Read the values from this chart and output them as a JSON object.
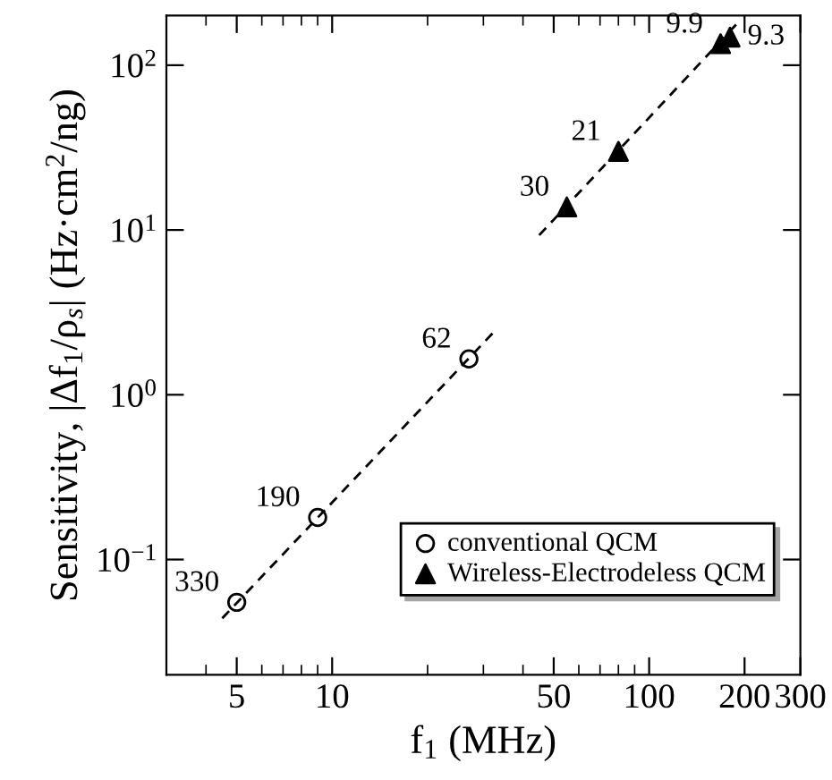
{
  "chart_data": {
    "type": "scatter",
    "xlabel": "f$_{1}$ (MHz)",
    "ylabel": "Sensitivity, |Δf$_{1}$/ρ$_{s}$| (Hz·cm$^{2}$/ng)",
    "log": "xy",
    "xlim": [
      3,
      300
    ],
    "ylim": [
      0.02,
      200
    ],
    "xticks": [
      5,
      10,
      50,
      100,
      200,
      300
    ],
    "yticks": [
      {
        "value": 0.1,
        "label": "10$^{−1}$"
      },
      {
        "value": 1,
        "label": "10$^{0}$"
      },
      {
        "value": 10,
        "label": "10$^{1}$"
      },
      {
        "value": 100,
        "label": "10$^{2}$"
      }
    ],
    "grid": false,
    "legend": "bottom right",
    "series": [
      {
        "name": "conventional QCM",
        "color": "#000000",
        "marker": "circle",
        "x": [
          5,
          9,
          27
        ],
        "values": [
          0.055,
          0.18,
          1.65
        ]
      },
      {
        "name": "Wireless-Electrodeless QCM",
        "color": "#000000",
        "marker": "triangle",
        "x": [
          55,
          80,
          168,
          180
        ],
        "values": [
          13.8,
          30,
          135,
          148
        ]
      },
      {
        "type": "line",
        "color": "#000000",
        "line_style": "dashed",
        "marker": "none",
        "x": [
          4.5,
          33
        ],
        "values": [
          0.044,
          2.5
        ]
      },
      {
        "type": "line",
        "color": "#000000",
        "line_style": "dashed",
        "marker": "none",
        "x": [
          45,
          190
        ],
        "values": [
          9.3,
          180
        ]
      }
    ],
    "annotations": [
      {
        "text": "330",
        "x": 5,
        "y": 0.055
      },
      {
        "text": "190",
        "x": 9,
        "y": 0.18
      },
      {
        "text": "62",
        "x": 27,
        "y": 1.65
      },
      {
        "text": "30",
        "x": 55,
        "y": 13.8
      },
      {
        "text": "21",
        "x": 80,
        "y": 30
      },
      {
        "text": "9.9",
        "x": 168,
        "y": 135
      },
      {
        "text": "9.3",
        "x": 180,
        "y": 148
      }
    ]
  }
}
